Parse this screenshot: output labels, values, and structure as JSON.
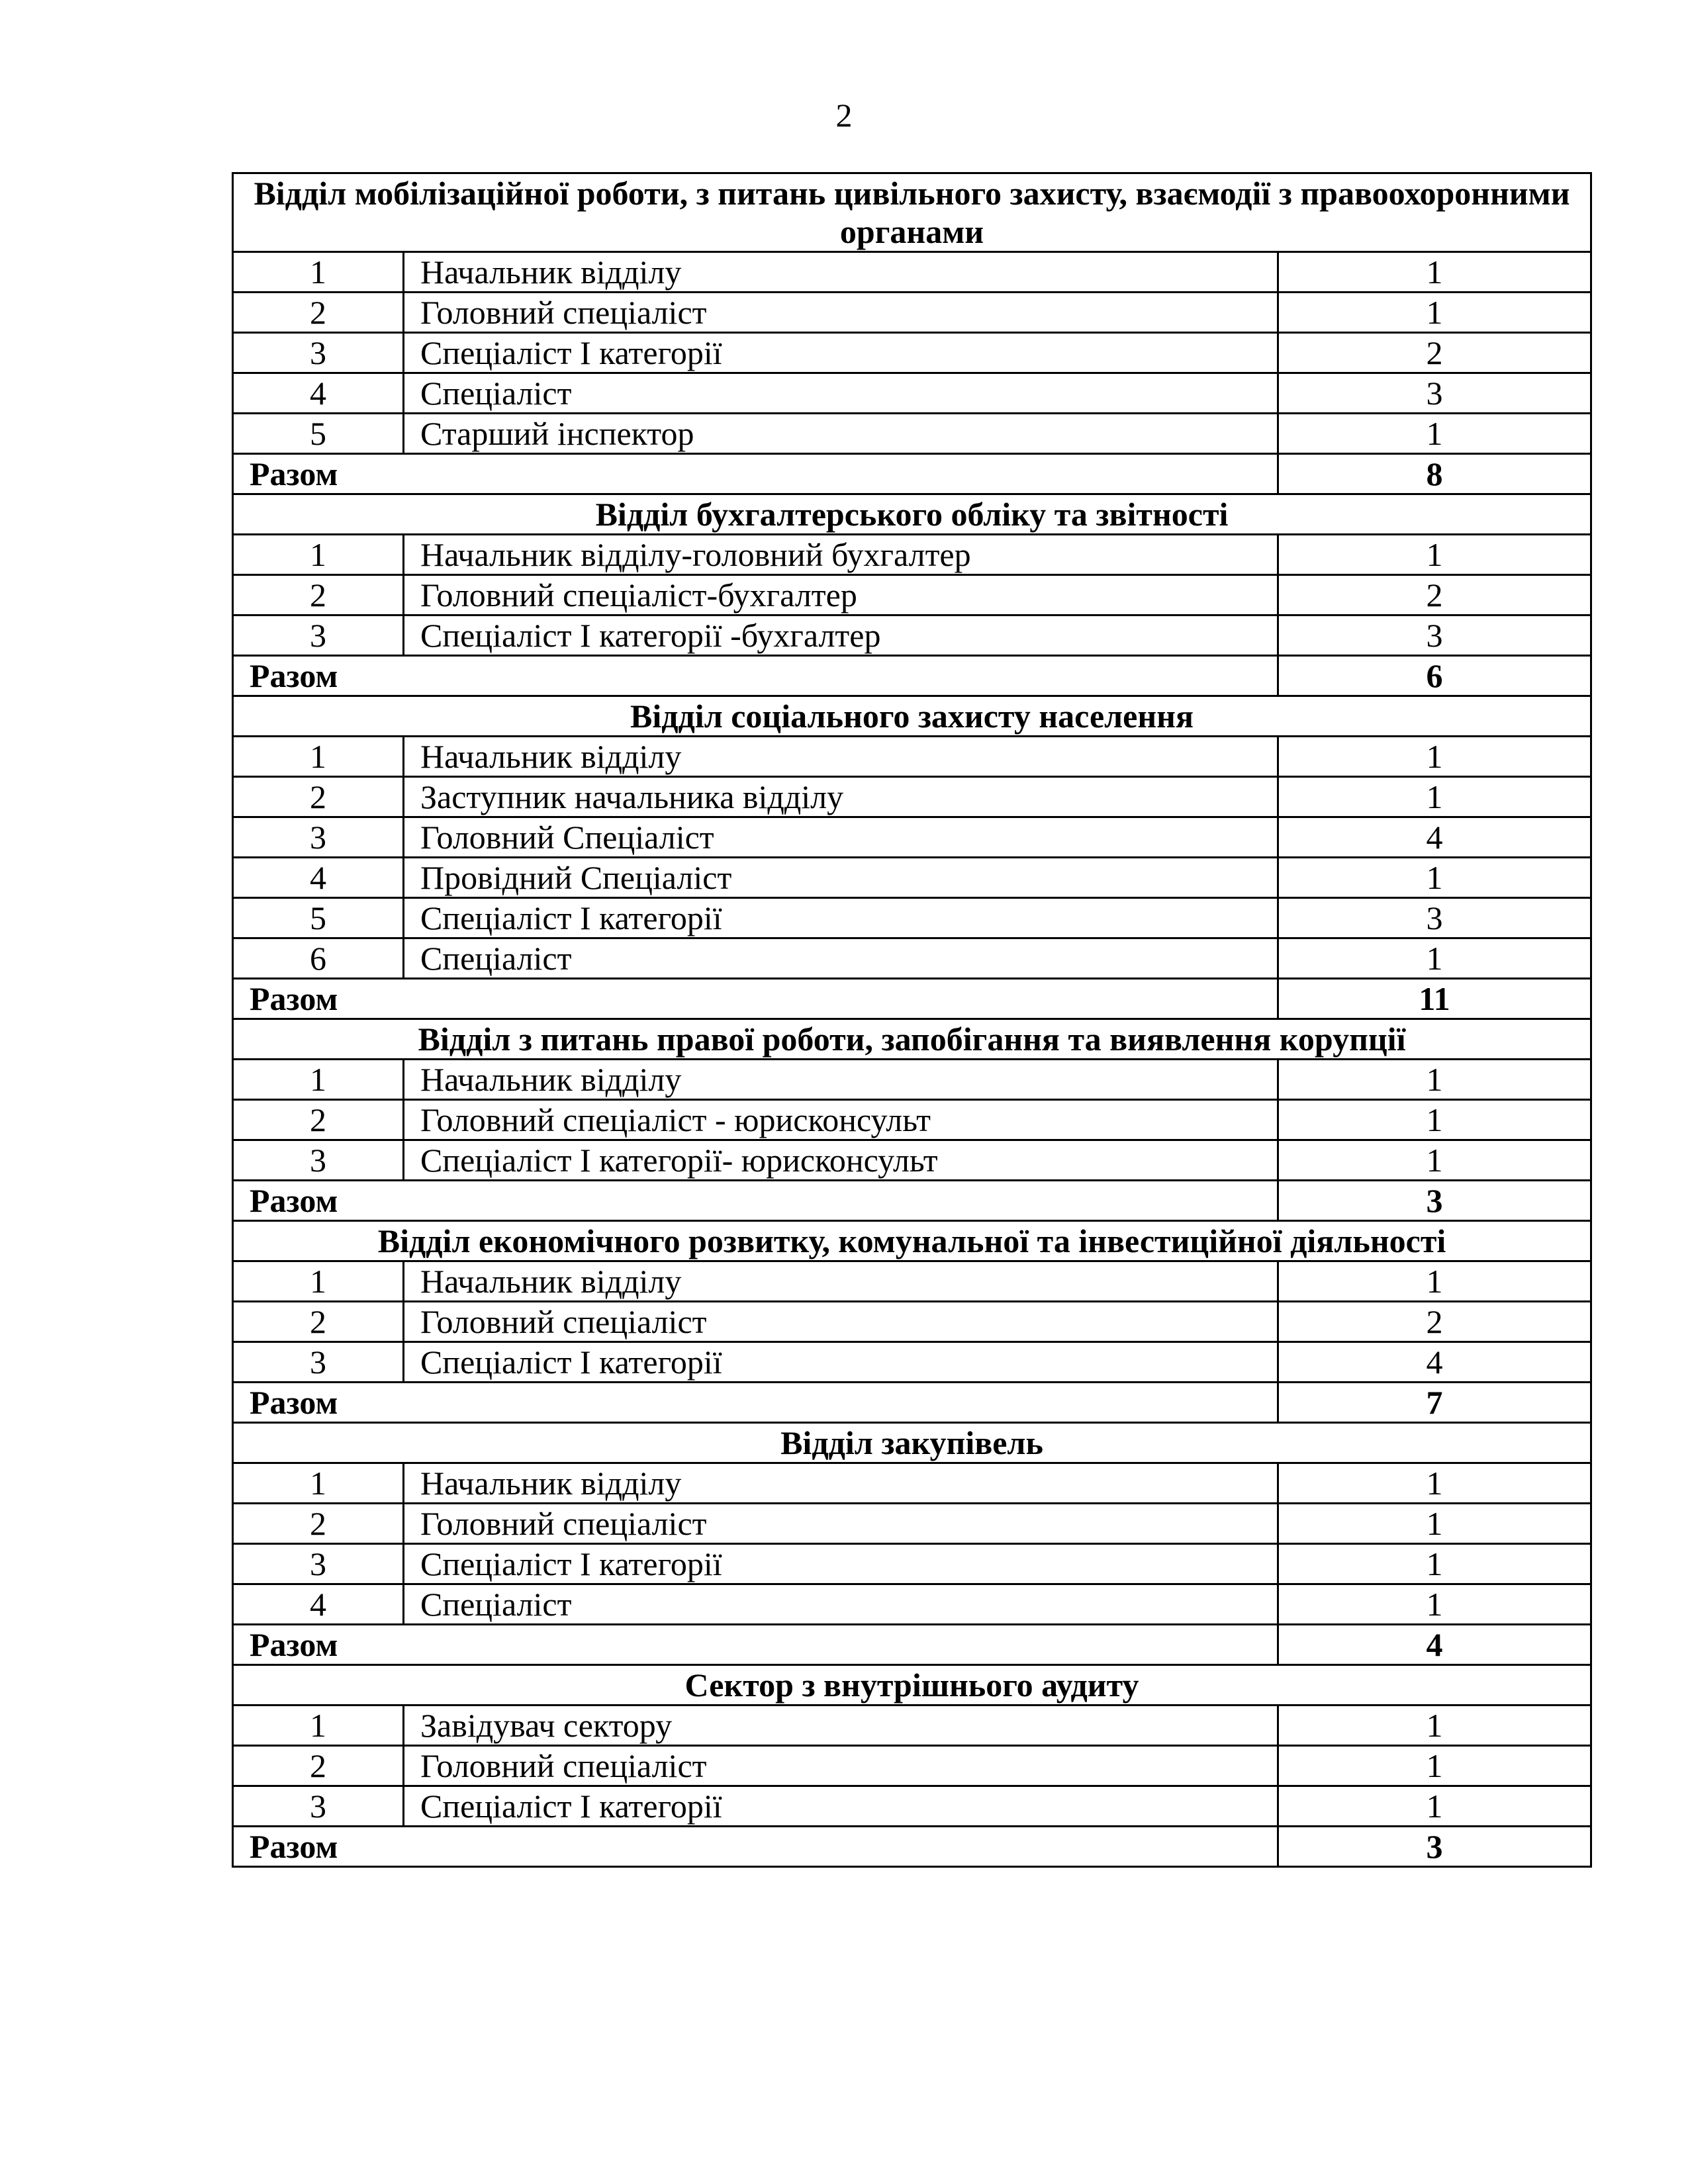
{
  "page_number": "2",
  "total_label": "Разом",
  "sections": [
    {
      "title": "Відділ мобілізаційної роботи, з питань цивільного захисту, взаємодії з правоохоронними органами",
      "rows": [
        [
          "1",
          "Начальник відділу",
          "1"
        ],
        [
          "2",
          "Головний спеціаліст",
          "1"
        ],
        [
          "3",
          "Спеціаліст І категорії",
          "2"
        ],
        [
          "4",
          "Спеціаліст",
          "3"
        ],
        [
          "5",
          "Старший інспектор",
          "1"
        ]
      ],
      "total": "8"
    },
    {
      "title": "Відділ бухгалтерського обліку та звітності",
      "rows": [
        [
          "1",
          "Начальник відділу-головний бухгалтер",
          "1"
        ],
        [
          "2",
          "Головний спеціаліст-бухгалтер",
          "2"
        ],
        [
          "3",
          "Спеціаліст І категорії -бухгалтер",
          "3"
        ]
      ],
      "total": "6"
    },
    {
      "title": "Відділ соціального захисту населення",
      "rows": [
        [
          "1",
          "Начальник відділу",
          "1"
        ],
        [
          "2",
          "Заступник начальника відділу",
          "1"
        ],
        [
          "3",
          "Головний Спеціаліст",
          "4"
        ],
        [
          "4",
          "Провідний Спеціаліст",
          "1"
        ],
        [
          "5",
          "Спеціаліст І категорії",
          "3"
        ],
        [
          "6",
          "Спеціаліст",
          "1"
        ]
      ],
      "total": "11"
    },
    {
      "title": "Відділ з питань правої роботи, запобігання та виявлення корупції",
      "rows": [
        [
          "1",
          "Начальник відділу",
          "1"
        ],
        [
          "2",
          "Головний спеціаліст - юрисконсульт",
          "1"
        ],
        [
          "3",
          "Спеціаліст І категорії- юрисконсульт",
          "1"
        ]
      ],
      "total": "3"
    },
    {
      "title": "Відділ економічного розвитку, комунальної та інвестиційної діяльності",
      "rows": [
        [
          "1",
          "Начальник відділу",
          "1"
        ],
        [
          "2",
          "Головний спеціаліст",
          "2"
        ],
        [
          "3",
          "Спеціаліст І категорії",
          "4"
        ]
      ],
      "total": "7"
    },
    {
      "title": "Відділ закупівель",
      "rows": [
        [
          "1",
          "Начальник відділу",
          "1"
        ],
        [
          "2",
          "Головний спеціаліст",
          "1"
        ],
        [
          "3",
          "Спеціаліст І категорії",
          "1"
        ],
        [
          "4",
          "Спеціаліст",
          "1"
        ]
      ],
      "total": "4"
    },
    {
      "title": "Сектор з внутрішнього аудиту",
      "rows": [
        [
          "1",
          "Завідувач сектору",
          "1"
        ],
        [
          "2",
          "Головний спеціаліст",
          "1"
        ],
        [
          "3",
          "Спеціаліст І категорії",
          "1"
        ]
      ],
      "total": "3"
    }
  ]
}
